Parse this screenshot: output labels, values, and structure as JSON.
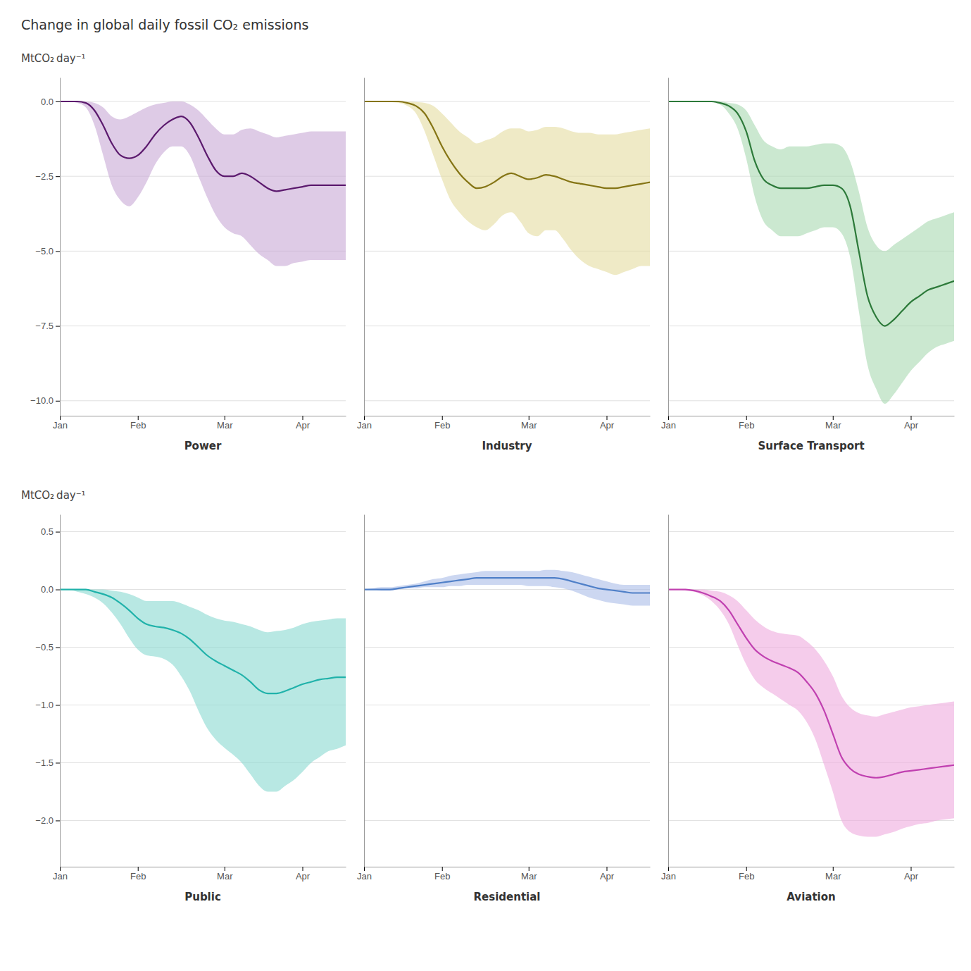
{
  "title": "Change in global daily fossil CO₂ emissions",
  "chart_data": [
    {
      "type": "line",
      "xlabel": "Power",
      "ylabel": "MtCO₂ day⁻¹",
      "x": [
        0,
        1,
        2,
        3,
        4,
        5,
        6,
        7,
        8,
        9,
        10,
        11,
        12,
        13,
        14,
        15,
        16,
        17,
        18,
        19,
        20,
        21,
        22,
        23,
        24,
        25,
        26,
        27,
        28,
        29,
        30,
        31,
        32,
        33
      ],
      "xlim": [
        0,
        33
      ],
      "xticks": [
        {
          "value": 0,
          "label": "Jan"
        },
        {
          "value": 9,
          "label": "Feb"
        },
        {
          "value": 19,
          "label": "Mar"
        },
        {
          "value": 28,
          "label": "Apr"
        }
      ],
      "ylim": [
        -10.5,
        0.8
      ],
      "yticks": [
        {
          "value": 0.0,
          "label": "0.0"
        },
        {
          "value": -2.5,
          "label": "−2.5"
        },
        {
          "value": -5.0,
          "label": "−5.0"
        },
        {
          "value": -7.5,
          "label": "−7.5"
        },
        {
          "value": -10.0,
          "label": "−10.0"
        }
      ],
      "grid": "y",
      "series": [
        {
          "type": "area",
          "color": "#c8a8d5",
          "lower": [
            0.0,
            -0.0,
            -0.05,
            -0.2,
            -0.8,
            -1.8,
            -2.8,
            -3.3,
            -3.5,
            -3.2,
            -2.7,
            -2.1,
            -1.7,
            -1.5,
            -1.5,
            -1.8,
            -2.5,
            -3.2,
            -3.8,
            -4.2,
            -4.4,
            -4.5,
            -4.8,
            -5.1,
            -5.3,
            -5.5,
            -5.5,
            -5.4,
            -5.35,
            -5.3,
            -5.3,
            -5.3,
            -5.3,
            -5.3
          ],
          "upper": [
            0.0,
            0.0,
            0.0,
            0.0,
            -0.05,
            -0.2,
            -0.5,
            -0.6,
            -0.5,
            -0.35,
            -0.2,
            -0.1,
            -0.05,
            -0.0,
            -0.0,
            -0.1,
            -0.3,
            -0.6,
            -0.9,
            -1.1,
            -1.1,
            -0.95,
            -0.9,
            -1.0,
            -1.1,
            -1.2,
            -1.15,
            -1.1,
            -1.05,
            -1.0,
            -1.0,
            -1.0,
            -1.0,
            -1.0
          ]
        },
        {
          "type": "line",
          "color": "#5c1a6e",
          "values": [
            0.0,
            0.0,
            0.0,
            -0.05,
            -0.3,
            -0.8,
            -1.4,
            -1.8,
            -1.9,
            -1.8,
            -1.5,
            -1.1,
            -0.8,
            -0.6,
            -0.5,
            -0.7,
            -1.2,
            -1.8,
            -2.3,
            -2.5,
            -2.5,
            -2.4,
            -2.5,
            -2.7,
            -2.9,
            -3.0,
            -2.95,
            -2.9,
            -2.85,
            -2.8,
            -2.8,
            -2.8,
            -2.8,
            -2.8
          ]
        }
      ]
    },
    {
      "type": "line",
      "xlabel": "Industry",
      "tick_labels": "x",
      "x": [
        0,
        1,
        2,
        3,
        4,
        5,
        6,
        7,
        8,
        9,
        10,
        11,
        12,
        13,
        14,
        15,
        16,
        17,
        18,
        19,
        20,
        21,
        22,
        23,
        24,
        25,
        26,
        27,
        28,
        29,
        30,
        31,
        32,
        33
      ],
      "xlim": [
        0,
        33
      ],
      "xticks": [
        {
          "value": 0,
          "label": "Jan"
        },
        {
          "value": 9,
          "label": "Feb"
        },
        {
          "value": 19,
          "label": "Mar"
        },
        {
          "value": 28,
          "label": "Apr"
        }
      ],
      "ylim": [
        -10.5,
        0.8
      ],
      "yticks": [
        0.0,
        -2.5,
        -5.0,
        -7.5,
        -10.0
      ],
      "grid": "y",
      "series": [
        {
          "type": "area",
          "color": "#e5dca0",
          "lower": [
            0.0,
            -0.0,
            -0.0,
            -0.02,
            -0.05,
            -0.15,
            -0.4,
            -1.0,
            -1.8,
            -2.6,
            -3.3,
            -3.7,
            -4.0,
            -4.2,
            -4.3,
            -4.1,
            -3.8,
            -3.7,
            -4.0,
            -4.4,
            -4.5,
            -4.3,
            -4.3,
            -4.6,
            -5.0,
            -5.3,
            -5.5,
            -5.6,
            -5.7,
            -5.8,
            -5.7,
            -5.6,
            -5.5,
            -5.5
          ],
          "upper": [
            0.0,
            0.0,
            0.0,
            0.0,
            0.0,
            -0.0,
            -0.02,
            -0.05,
            -0.15,
            -0.4,
            -0.7,
            -1.0,
            -1.2,
            -1.4,
            -1.3,
            -1.2,
            -1.0,
            -0.9,
            -0.9,
            -1.0,
            -0.95,
            -0.85,
            -0.85,
            -0.9,
            -1.0,
            -1.05,
            -1.05,
            -1.1,
            -1.1,
            -1.1,
            -1.05,
            -1.0,
            -0.95,
            -0.9
          ]
        },
        {
          "type": "line",
          "color": "#857515",
          "values": [
            0.0,
            -0.0,
            -0.0,
            -0.0,
            -0.0,
            -0.05,
            -0.15,
            -0.4,
            -0.9,
            -1.5,
            -2.0,
            -2.4,
            -2.7,
            -2.9,
            -2.85,
            -2.7,
            -2.5,
            -2.4,
            -2.5,
            -2.6,
            -2.55,
            -2.45,
            -2.5,
            -2.6,
            -2.7,
            -2.75,
            -2.8,
            -2.85,
            -2.9,
            -2.9,
            -2.85,
            -2.8,
            -2.75,
            -2.7
          ]
        }
      ]
    },
    {
      "type": "line",
      "xlabel": "Surface Transport",
      "tick_labels": "x",
      "x": [
        0,
        1,
        2,
        3,
        4,
        5,
        6,
        7,
        8,
        9,
        10,
        11,
        12,
        13,
        14,
        15,
        16,
        17,
        18,
        19,
        20,
        21,
        22,
        23,
        24,
        25,
        26,
        27,
        28,
        29,
        30,
        31,
        32,
        33
      ],
      "xlim": [
        0,
        33
      ],
      "xticks": [
        {
          "value": 0,
          "label": "Jan"
        },
        {
          "value": 9,
          "label": "Feb"
        },
        {
          "value": 19,
          "label": "Mar"
        },
        {
          "value": 28,
          "label": "Apr"
        }
      ],
      "ylim": [
        -10.5,
        0.8
      ],
      "yticks": [
        0.0,
        -2.5,
        -5.0,
        -7.5,
        -10.0
      ],
      "grid": "y",
      "series": [
        {
          "type": "area",
          "color": "#a8d8b0",
          "lower": [
            0.0,
            0.0,
            -0.0,
            -0.0,
            -0.0,
            -0.02,
            -0.1,
            -0.4,
            -0.9,
            -1.9,
            -3.2,
            -4.0,
            -4.3,
            -4.5,
            -4.5,
            -4.5,
            -4.4,
            -4.3,
            -4.2,
            -4.2,
            -4.4,
            -5.2,
            -7.0,
            -8.8,
            -9.6,
            -10.1,
            -9.8,
            -9.4,
            -9.0,
            -8.7,
            -8.4,
            -8.2,
            -8.1,
            -8.0
          ],
          "upper": [
            0.0,
            0.0,
            0.0,
            0.0,
            0.0,
            0.0,
            -0.0,
            -0.05,
            -0.1,
            -0.3,
            -0.8,
            -1.3,
            -1.5,
            -1.6,
            -1.5,
            -1.5,
            -1.5,
            -1.45,
            -1.4,
            -1.4,
            -1.5,
            -2.0,
            -3.0,
            -4.2,
            -4.8,
            -5.0,
            -4.8,
            -4.6,
            -4.4,
            -4.2,
            -4.0,
            -3.9,
            -3.8,
            -3.7
          ]
        },
        {
          "type": "line",
          "color": "#2d7a3a",
          "values": [
            0.0,
            0.0,
            0.0,
            0.0,
            -0.0,
            -0.0,
            -0.05,
            -0.15,
            -0.4,
            -1.0,
            -2.0,
            -2.6,
            -2.8,
            -2.9,
            -2.9,
            -2.9,
            -2.9,
            -2.85,
            -2.8,
            -2.8,
            -2.9,
            -3.5,
            -5.0,
            -6.5,
            -7.2,
            -7.5,
            -7.3,
            -7.0,
            -6.7,
            -6.5,
            -6.3,
            -6.2,
            -6.1,
            -6.0
          ]
        }
      ]
    },
    {
      "type": "line",
      "xlabel": "Public",
      "ylabel": "MtCO₂ day⁻¹",
      "x": [
        0,
        1,
        2,
        3,
        4,
        5,
        6,
        7,
        8,
        9,
        10,
        11,
        12,
        13,
        14,
        15,
        16,
        17,
        18,
        19,
        20,
        21,
        22,
        23,
        24,
        25,
        26,
        27,
        28,
        29,
        30,
        31,
        32,
        33
      ],
      "xlim": [
        0,
        33
      ],
      "xticks": [
        {
          "value": 0,
          "label": "Jan"
        },
        {
          "value": 9,
          "label": "Feb"
        },
        {
          "value": 19,
          "label": "Mar"
        },
        {
          "value": 28,
          "label": "Apr"
        }
      ],
      "ylim": [
        -2.4,
        0.65
      ],
      "yticks": [
        0.5,
        {
          "value": 0.0,
          "label": "0.0"
        },
        {
          "value": -0.5,
          "label": "−0.5"
        },
        {
          "value": -1.0,
          "label": "−1.0"
        },
        {
          "value": -1.5,
          "label": "−1.5"
        },
        {
          "value": -2.0,
          "label": "−2.0"
        }
      ],
      "grid": "y",
      "series": [
        {
          "type": "area",
          "color": "#88d8d0",
          "lower": [
            0.0,
            -0.0,
            -0.02,
            -0.04,
            -0.07,
            -0.12,
            -0.2,
            -0.3,
            -0.42,
            -0.52,
            -0.57,
            -0.58,
            -0.6,
            -0.65,
            -0.75,
            -0.88,
            -1.05,
            -1.2,
            -1.3,
            -1.37,
            -1.43,
            -1.5,
            -1.6,
            -1.7,
            -1.75,
            -1.75,
            -1.7,
            -1.65,
            -1.58,
            -1.5,
            -1.45,
            -1.4,
            -1.38,
            -1.35
          ],
          "upper": [
            0.0,
            0.0,
            0.0,
            0.0,
            0.0,
            0.0,
            -0.01,
            -0.02,
            -0.04,
            -0.07,
            -0.1,
            -0.1,
            -0.1,
            -0.1,
            -0.12,
            -0.15,
            -0.18,
            -0.22,
            -0.25,
            -0.27,
            -0.28,
            -0.3,
            -0.32,
            -0.35,
            -0.37,
            -0.36,
            -0.35,
            -0.33,
            -0.3,
            -0.28,
            -0.27,
            -0.26,
            -0.25,
            -0.25
          ]
        },
        {
          "type": "line",
          "color": "#20b2aa",
          "values": [
            0.0,
            0.0,
            0.0,
            -0.0,
            -0.02,
            -0.04,
            -0.07,
            -0.12,
            -0.18,
            -0.25,
            -0.3,
            -0.32,
            -0.33,
            -0.35,
            -0.38,
            -0.43,
            -0.5,
            -0.57,
            -0.62,
            -0.66,
            -0.7,
            -0.74,
            -0.8,
            -0.87,
            -0.9,
            -0.9,
            -0.88,
            -0.85,
            -0.82,
            -0.8,
            -0.78,
            -0.77,
            -0.76,
            -0.76
          ]
        }
      ]
    },
    {
      "type": "line",
      "xlabel": "Residential",
      "tick_labels": "x",
      "x": [
        0,
        1,
        2,
        3,
        4,
        5,
        6,
        7,
        8,
        9,
        10,
        11,
        12,
        13,
        14,
        15,
        16,
        17,
        18,
        19,
        20,
        21,
        22,
        23,
        24,
        25,
        26,
        27,
        28,
        29,
        30,
        31,
        32,
        33
      ],
      "xlim": [
        0,
        33
      ],
      "xticks": [
        {
          "value": 0,
          "label": "Jan"
        },
        {
          "value": 9,
          "label": "Feb"
        },
        {
          "value": 19,
          "label": "Mar"
        },
        {
          "value": 28,
          "label": "Apr"
        }
      ],
      "ylim": [
        -2.4,
        0.65
      ],
      "yticks": [
        0.5,
        0.0,
        -0.5,
        -1.0,
        -1.5,
        -2.0
      ],
      "grid": "y",
      "series": [
        {
          "type": "area",
          "color": "#aabce8",
          "lower": [
            0.0,
            -0.0,
            -0.01,
            -0.01,
            0.0,
            0.01,
            0.01,
            0.02,
            0.02,
            0.02,
            0.03,
            0.03,
            0.04,
            0.04,
            0.04,
            0.04,
            0.04,
            0.04,
            0.04,
            0.03,
            0.03,
            0.03,
            0.02,
            0.01,
            -0.01,
            -0.04,
            -0.07,
            -0.09,
            -0.11,
            -0.12,
            -0.13,
            -0.14,
            -0.14,
            -0.14
          ],
          "upper": [
            0.0,
            0.01,
            0.02,
            0.02,
            0.03,
            0.04,
            0.05,
            0.07,
            0.09,
            0.1,
            0.12,
            0.13,
            0.14,
            0.15,
            0.16,
            0.16,
            0.16,
            0.16,
            0.16,
            0.16,
            0.16,
            0.17,
            0.17,
            0.16,
            0.15,
            0.13,
            0.11,
            0.09,
            0.07,
            0.05,
            0.04,
            0.04,
            0.04,
            0.04
          ]
        },
        {
          "type": "line",
          "color": "#5080c8",
          "values": [
            0.0,
            0.0,
            0.0,
            0.0,
            0.01,
            0.02,
            0.03,
            0.04,
            0.05,
            0.06,
            0.07,
            0.08,
            0.09,
            0.1,
            0.1,
            0.1,
            0.1,
            0.1,
            0.1,
            0.1,
            0.1,
            0.1,
            0.1,
            0.09,
            0.07,
            0.05,
            0.03,
            0.01,
            0.0,
            -0.01,
            -0.02,
            -0.03,
            -0.03,
            -0.03
          ]
        }
      ]
    },
    {
      "type": "line",
      "xlabel": "Aviation",
      "tick_labels": "x",
      "x": [
        0,
        1,
        2,
        3,
        4,
        5,
        6,
        7,
        8,
        9,
        10,
        11,
        12,
        13,
        14,
        15,
        16,
        17,
        18,
        19,
        20,
        21,
        22,
        23,
        24,
        25,
        26,
        27,
        28,
        29,
        30,
        31,
        32,
        33
      ],
      "xlim": [
        0,
        33
      ],
      "xticks": [
        {
          "value": 0,
          "label": "Jan"
        },
        {
          "value": 9,
          "label": "Feb"
        },
        {
          "value": 19,
          "label": "Mar"
        },
        {
          "value": 28,
          "label": "Apr"
        }
      ],
      "ylim": [
        -2.4,
        0.65
      ],
      "yticks": [
        0.5,
        0.0,
        -0.5,
        -1.0,
        -1.5,
        -2.0
      ],
      "grid": "y",
      "series": [
        {
          "type": "area",
          "color": "#eeaadd",
          "lower": [
            0.0,
            -0.0,
            -0.01,
            -0.02,
            -0.05,
            -0.1,
            -0.18,
            -0.3,
            -0.48,
            -0.65,
            -0.78,
            -0.85,
            -0.9,
            -0.95,
            -1.0,
            -1.05,
            -1.15,
            -1.3,
            -1.52,
            -1.75,
            -2.0,
            -2.1,
            -2.13,
            -2.14,
            -2.14,
            -2.12,
            -2.1,
            -2.07,
            -2.05,
            -2.03,
            -2.02,
            -2.0,
            -1.99,
            -1.98
          ],
          "upper": [
            0.0,
            0.0,
            0.0,
            0.0,
            -0.0,
            -0.01,
            -0.02,
            -0.05,
            -0.1,
            -0.18,
            -0.26,
            -0.32,
            -0.36,
            -0.38,
            -0.39,
            -0.4,
            -0.45,
            -0.52,
            -0.62,
            -0.75,
            -0.92,
            -1.02,
            -1.07,
            -1.09,
            -1.1,
            -1.08,
            -1.06,
            -1.04,
            -1.02,
            -1.01,
            -1.0,
            -0.99,
            -0.98,
            -0.97
          ]
        },
        {
          "type": "line",
          "color": "#c040b0",
          "values": [
            0.0,
            0.0,
            -0.0,
            -0.01,
            -0.03,
            -0.06,
            -0.1,
            -0.18,
            -0.3,
            -0.42,
            -0.52,
            -0.58,
            -0.62,
            -0.65,
            -0.68,
            -0.72,
            -0.8,
            -0.9,
            -1.05,
            -1.25,
            -1.45,
            -1.55,
            -1.6,
            -1.62,
            -1.63,
            -1.62,
            -1.6,
            -1.58,
            -1.57,
            -1.56,
            -1.55,
            -1.54,
            -1.53,
            -1.52
          ]
        }
      ]
    }
  ]
}
